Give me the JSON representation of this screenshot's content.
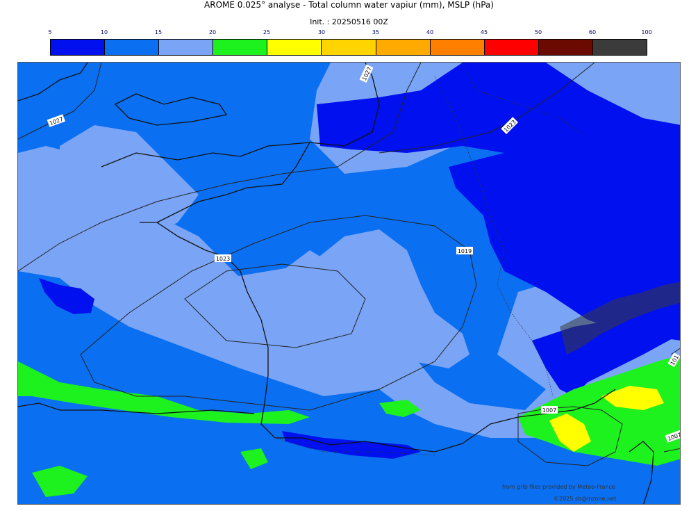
{
  "title": "AROME 0.025° analyse - Total column water vapiur (mm), MSLP (hPa)",
  "subtitle": "Init. : 20250516 00Z",
  "legend": {
    "ticks": [
      "5",
      "10",
      "15",
      "20",
      "25",
      "30",
      "35",
      "40",
      "45",
      "50",
      "60",
      "100"
    ],
    "colors": [
      "#0010ee",
      "#0a6ff0",
      "#7aa4f6",
      "#1ef21e",
      "#ffff00",
      "#ffd400",
      "#ffaa00",
      "#ff7f00",
      "#ff0000",
      "#6b0a00",
      "#3b3b3b"
    ]
  },
  "isobar_labels": [
    "1027",
    "1027",
    "1023",
    "1019",
    "1023",
    "1007",
    "1007",
    "1007",
    "101"
  ],
  "credits": {
    "source": "from grib files provided by Meteo-France",
    "copyright": "©2025 sb@inzone.net"
  }
}
